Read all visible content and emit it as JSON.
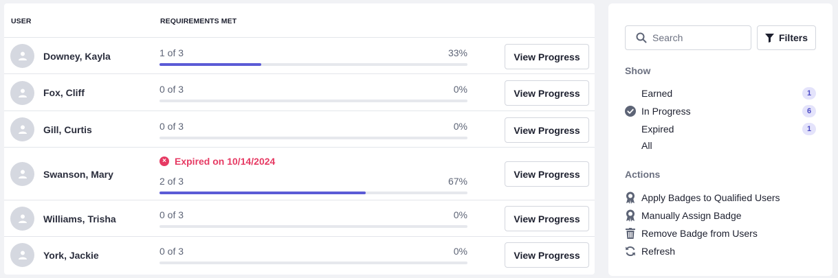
{
  "table": {
    "headers": {
      "user": "USER",
      "requirements": "REQUIREMENTS MET"
    },
    "button_label": "View Progress",
    "progress_color": "#5b5bd6",
    "rows": [
      {
        "name": "Downey, Kayla",
        "progress": "1 of 3",
        "percent": "33%",
        "fill": 0.33,
        "expired": ""
      },
      {
        "name": "Fox, Cliff",
        "progress": "0 of 3",
        "percent": "0%",
        "fill": 0,
        "expired": ""
      },
      {
        "name": "Gill, Curtis",
        "progress": "0 of 3",
        "percent": "0%",
        "fill": 0,
        "expired": ""
      },
      {
        "name": "Swanson, Mary",
        "progress": "2 of 3",
        "percent": "67%",
        "fill": 0.67,
        "expired": "Expired on 10/14/2024"
      },
      {
        "name": "Williams, Trisha",
        "progress": "0 of 3",
        "percent": "0%",
        "fill": 0,
        "expired": ""
      },
      {
        "name": "York, Jackie",
        "progress": "0 of 3",
        "percent": "0%",
        "fill": 0,
        "expired": ""
      }
    ]
  },
  "sidebar": {
    "search": {
      "placeholder": "Search",
      "value": ""
    },
    "filters_label": "Filters",
    "show_title": "Show",
    "show_items": [
      {
        "label": "Earned",
        "count": "1",
        "selected": false
      },
      {
        "label": "In Progress",
        "count": "6",
        "selected": true
      },
      {
        "label": "Expired",
        "count": "1",
        "selected": false
      },
      {
        "label": "All",
        "count": "",
        "selected": false
      }
    ],
    "actions_title": "Actions",
    "actions": [
      {
        "label": "Apply Badges to Qualified Users",
        "icon": "badge-icon"
      },
      {
        "label": "Manually Assign Badge",
        "icon": "badge-icon"
      },
      {
        "label": "Remove Badge from Users",
        "icon": "trash-icon"
      },
      {
        "label": "Refresh",
        "icon": "refresh-icon"
      }
    ]
  }
}
